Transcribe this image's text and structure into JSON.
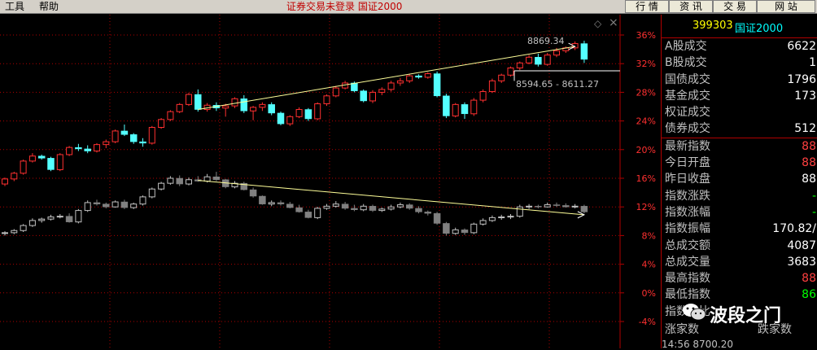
{
  "menu": {
    "tools": "工具",
    "help": "帮助"
  },
  "status_message": "证券交易未登录 国证2000",
  "top_buttons": [
    "行 情",
    "资 讯",
    "交 易",
    "网 站"
  ],
  "close_symbols": {
    "diamond": "◇",
    "close": "×"
  },
  "panel": {
    "code": "399303",
    "name": "国证2000",
    "rows": [
      {
        "label": "A股成交",
        "value": "6622",
        "color": "#ffffff"
      },
      {
        "label": "B股成交",
        "value": "1",
        "color": "#ffffff"
      },
      {
        "label": "国债成交",
        "value": "1796",
        "color": "#ffffff"
      },
      {
        "label": "基金成交",
        "value": "173",
        "color": "#ffffff"
      },
      {
        "label": "权证成交",
        "value": "",
        "color": "#ffffff"
      },
      {
        "label": "债券成交",
        "value": "512",
        "color": "#ffffff"
      },
      {
        "label": "最新指数",
        "value": "88",
        "color": "#ff4040"
      },
      {
        "label": "今日开盘",
        "value": "88",
        "color": "#ff4040"
      },
      {
        "label": "昨日收盘",
        "value": "88",
        "color": "#ffffff"
      },
      {
        "label": "指数涨跌",
        "value": "-",
        "color": "#00ff00"
      },
      {
        "label": "指数涨幅",
        "value": "-",
        "color": "#00ff00"
      },
      {
        "label": "指数振幅",
        "value": "170.82/",
        "color": "#ffffff"
      },
      {
        "label": "总成交额",
        "value": "4087",
        "color": "#ffffff"
      },
      {
        "label": "总成交量",
        "value": "3683",
        "color": "#ffffff"
      },
      {
        "label": "最高指数",
        "value": "88",
        "color": "#ff4040"
      },
      {
        "label": "最低指数",
        "value": "86",
        "color": "#00ff00"
      },
      {
        "label": "指数量比",
        "value": "",
        "color": "#ffffff"
      }
    ],
    "footer": {
      "up": "涨家数",
      "down": "跌家数"
    },
    "time_text": "14:56     8700.20"
  },
  "watermark": "波段之门",
  "chart_data": {
    "type": "candlestick",
    "y_axis_ticks": [
      "36%",
      "32%",
      "28%",
      "24%",
      "20%",
      "16%",
      "12%",
      "8%",
      "4%",
      "0%",
      "-4%"
    ],
    "ylim": [
      -4,
      36
    ],
    "annotations": {
      "high_label": "8869.34",
      "range_label": "8594.65 - 8611.27"
    },
    "colors": {
      "up": "#ff3030",
      "down": "#54ffff",
      "up2": "#c0c0c0",
      "down2": "#808080",
      "grid": "#b00000",
      "axis_text": "#ff3030",
      "trend": "#ffff99"
    },
    "series": [
      {
        "name": "",
        "ohlc": [
          [
            15.2,
            16.1,
            14.9,
            15.9
          ],
          [
            15.9,
            16.9,
            15.6,
            16.7
          ],
          [
            16.7,
            18.6,
            16.5,
            18.4
          ],
          [
            18.4,
            19.5,
            18.2,
            19.1
          ],
          [
            19.1,
            19.3,
            18.6,
            18.8
          ],
          [
            18.8,
            19.0,
            17.0,
            17.2
          ],
          [
            17.2,
            19.5,
            17.0,
            19.3
          ],
          [
            19.3,
            20.5,
            19.1,
            20.3
          ],
          [
            20.3,
            20.8,
            19.8,
            20.1
          ],
          [
            20.1,
            20.6,
            19.5,
            19.8
          ],
          [
            19.8,
            20.9,
            19.6,
            20.7
          ],
          [
            20.7,
            21.4,
            20.2,
            21.1
          ],
          [
            21.1,
            22.8,
            20.9,
            22.6
          ],
          [
            22.6,
            23.5,
            21.9,
            22.1
          ],
          [
            22.1,
            22.3,
            20.8,
            21.1
          ],
          [
            21.1,
            21.6,
            20.4,
            20.9
          ],
          [
            20.9,
            23.3,
            20.7,
            23.1
          ],
          [
            23.1,
            24.4,
            22.9,
            24.2
          ],
          [
            24.2,
            25.5,
            24.0,
            25.3
          ],
          [
            25.3,
            26.5,
            25.1,
            26.3
          ],
          [
            26.3,
            27.9,
            26.1,
            27.7
          ],
          [
            27.7,
            28.4,
            25.3,
            25.6
          ],
          [
            25.6,
            26.5,
            25.3,
            26.2
          ],
          [
            26.2,
            26.6,
            25.4,
            25.8
          ],
          [
            25.8,
            26.4,
            24.6,
            26.1
          ],
          [
            26.1,
            27.3,
            25.8,
            27.1
          ],
          [
            27.1,
            27.6,
            25.1,
            25.4
          ],
          [
            25.4,
            26.1,
            24.1,
            25.9
          ],
          [
            25.9,
            26.6,
            25.4,
            26.3
          ],
          [
            26.3,
            26.6,
            24.8,
            25.1
          ],
          [
            25.1,
            25.3,
            23.4,
            23.6
          ],
          [
            23.6,
            24.8,
            23.3,
            24.6
          ],
          [
            24.6,
            25.9,
            24.4,
            25.6
          ],
          [
            25.6,
            25.8,
            24.0,
            24.3
          ],
          [
            24.3,
            26.6,
            24.1,
            26.4
          ],
          [
            26.4,
            27.7,
            26.1,
            27.5
          ],
          [
            27.5,
            28.9,
            27.3,
            28.6
          ],
          [
            28.6,
            29.6,
            28.4,
            29.3
          ],
          [
            29.3,
            29.5,
            28.0,
            28.2
          ],
          [
            28.2,
            28.4,
            26.6,
            26.8
          ],
          [
            26.8,
            28.3,
            26.5,
            28.0
          ],
          [
            28.0,
            28.7,
            27.6,
            28.4
          ],
          [
            28.4,
            29.6,
            28.1,
            29.3
          ],
          [
            29.3,
            30.0,
            28.9,
            29.6
          ],
          [
            29.6,
            30.6,
            29.3,
            30.3
          ],
          [
            30.3,
            30.5,
            29.9,
            30.1
          ],
          [
            30.1,
            30.8,
            29.9,
            30.6
          ],
          [
            30.6,
            30.9,
            27.3,
            27.5
          ],
          [
            27.5,
            27.8,
            24.4,
            24.7
          ],
          [
            24.7,
            26.5,
            24.5,
            26.3
          ],
          [
            26.3,
            26.6,
            24.3,
            25.0
          ],
          [
            25.0,
            27.2,
            24.7,
            26.9
          ],
          [
            26.9,
            28.4,
            26.6,
            28.1
          ],
          [
            28.1,
            29.9,
            27.9,
            29.6
          ],
          [
            29.6,
            30.6,
            29.3,
            30.4
          ],
          [
            30.4,
            31.6,
            30.2,
            31.4
          ],
          [
            31.4,
            32.3,
            31.1,
            32.1
          ],
          [
            32.1,
            33.2,
            31.9,
            32.9
          ],
          [
            32.9,
            33.4,
            31.6,
            31.9
          ],
          [
            31.9,
            33.5,
            31.7,
            33.2
          ],
          [
            33.2,
            34.2,
            32.9,
            33.8
          ],
          [
            33.8,
            34.4,
            33.5,
            34.2
          ],
          [
            34.2,
            35.1,
            33.9,
            34.8
          ],
          [
            34.8,
            35.2,
            32.1,
            32.6
          ]
        ]
      },
      {
        "name": "",
        "ohlc": [
          [
            8.3,
            8.6,
            8.0,
            8.4
          ],
          [
            8.4,
            8.9,
            8.2,
            8.7
          ],
          [
            8.7,
            9.6,
            8.5,
            9.4
          ],
          [
            9.4,
            10.4,
            9.2,
            10.1
          ],
          [
            10.1,
            10.5,
            9.8,
            10.3
          ],
          [
            10.3,
            10.9,
            10.1,
            10.6
          ],
          [
            10.6,
            11.0,
            10.4,
            10.7
          ],
          [
            10.7,
            11.1,
            9.8,
            9.9
          ],
          [
            9.9,
            11.7,
            9.7,
            11.5
          ],
          [
            11.5,
            12.9,
            11.3,
            12.6
          ],
          [
            12.6,
            13.0,
            12.2,
            12.4
          ],
          [
            12.4,
            12.6,
            11.8,
            12.0
          ],
          [
            12.0,
            12.9,
            11.9,
            12.7
          ],
          [
            12.7,
            13.0,
            11.7,
            11.9
          ],
          [
            11.9,
            12.6,
            11.7,
            12.4
          ],
          [
            12.4,
            13.6,
            12.2,
            13.4
          ],
          [
            13.4,
            14.7,
            13.2,
            14.5
          ],
          [
            14.5,
            15.5,
            14.3,
            15.3
          ],
          [
            15.3,
            16.3,
            15.1,
            16.0
          ],
          [
            16.0,
            16.4,
            14.9,
            15.2
          ],
          [
            15.2,
            16.1,
            15.0,
            15.8
          ],
          [
            15.8,
            16.3,
            15.5,
            15.6
          ],
          [
            15.6,
            16.6,
            15.4,
            16.2
          ],
          [
            16.2,
            16.9,
            15.6,
            15.8
          ],
          [
            15.8,
            15.9,
            14.6,
            14.8
          ],
          [
            14.8,
            15.6,
            14.6,
            15.3
          ],
          [
            15.3,
            15.5,
            14.3,
            14.4
          ],
          [
            14.4,
            14.7,
            13.3,
            13.5
          ],
          [
            13.5,
            13.6,
            12.3,
            12.4
          ],
          [
            12.4,
            12.9,
            12.1,
            12.6
          ],
          [
            12.6,
            12.9,
            12.2,
            12.4
          ],
          [
            12.4,
            12.7,
            11.8,
            11.9
          ],
          [
            11.9,
            12.3,
            11.2,
            11.3
          ],
          [
            11.3,
            11.6,
            10.4,
            10.5
          ],
          [
            10.5,
            12.0,
            10.3,
            11.8
          ],
          [
            11.8,
            12.4,
            11.6,
            12.1
          ],
          [
            12.1,
            12.8,
            11.9,
            12.4
          ],
          [
            12.4,
            12.7,
            11.6,
            11.8
          ],
          [
            11.8,
            12.3,
            11.4,
            11.6
          ],
          [
            11.6,
            12.4,
            11.4,
            12.1
          ],
          [
            12.1,
            12.3,
            11.3,
            11.5
          ],
          [
            11.5,
            11.9,
            11.3,
            11.7
          ],
          [
            11.7,
            12.3,
            11.5,
            12.0
          ],
          [
            12.0,
            12.6,
            11.8,
            12.3
          ],
          [
            12.3,
            12.5,
            11.6,
            11.8
          ],
          [
            11.8,
            12.1,
            11.1,
            11.3
          ],
          [
            11.3,
            11.5,
            10.8,
            11.1
          ],
          [
            11.1,
            11.3,
            9.5,
            9.7
          ],
          [
            9.7,
            9.9,
            8.0,
            8.3
          ],
          [
            8.3,
            9.1,
            8.1,
            8.8
          ],
          [
            8.8,
            9.0,
            8.1,
            8.4
          ],
          [
            8.4,
            9.8,
            8.2,
            9.6
          ],
          [
            9.6,
            10.4,
            9.4,
            10.1
          ],
          [
            10.1,
            10.8,
            9.9,
            10.5
          ],
          [
            10.5,
            10.9,
            10.2,
            10.6
          ],
          [
            10.6,
            11.0,
            10.3,
            10.7
          ],
          [
            10.7,
            12.3,
            10.5,
            12.0
          ],
          [
            12.0,
            12.4,
            11.7,
            12.1
          ],
          [
            12.1,
            12.3,
            11.8,
            12.0
          ],
          [
            12.0,
            12.6,
            11.9,
            12.3
          ],
          [
            12.3,
            12.6,
            12.0,
            12.2
          ],
          [
            12.2,
            12.5,
            11.9,
            12.0
          ],
          [
            12.0,
            12.4,
            11.8,
            12.1
          ],
          [
            12.1,
            12.3,
            11.1,
            11.3
          ]
        ]
      }
    ]
  }
}
